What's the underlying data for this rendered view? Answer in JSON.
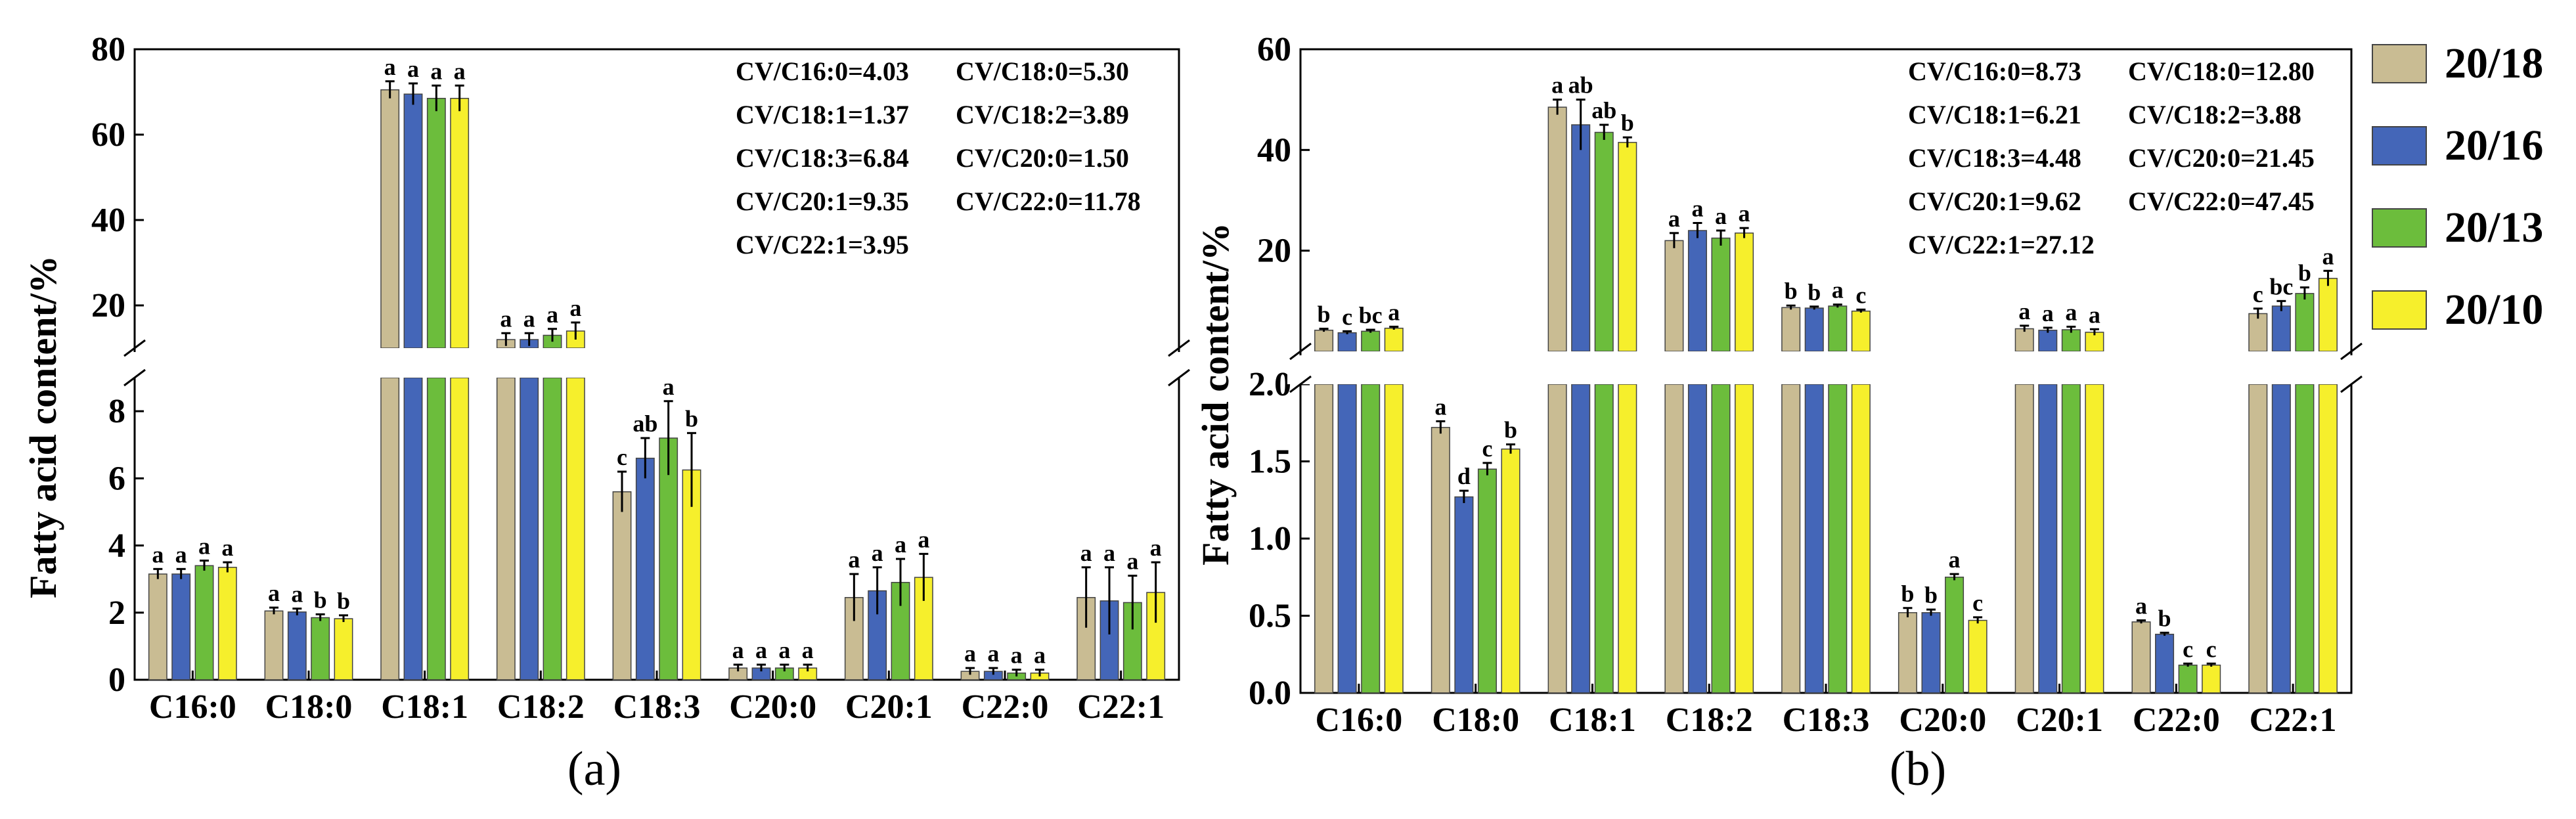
{
  "chart_data": [
    {
      "type": "bar",
      "panel": "(a)",
      "ylabel": "Fatty acid content/%",
      "axis_break": {
        "lower": [
          0,
          9
        ],
        "upper": [
          10,
          80
        ]
      },
      "lower_ticks": [
        "0",
        "2",
        "4",
        "6",
        "8"
      ],
      "upper_ticks": [
        "20",
        "40",
        "60",
        "80"
      ],
      "categories": [
        "C16:0",
        "C18:0",
        "C18:1",
        "C18:2",
        "C18:3",
        "C20:0",
        "C20:1",
        "C22:0",
        "C22:1"
      ],
      "series": [
        {
          "name": "20/18",
          "color": "#c9bc93",
          "values": [
            3.15,
            2.05,
            70.5,
            12.0,
            5.6,
            0.35,
            2.45,
            0.25,
            2.45
          ],
          "errors": [
            0.15,
            0.1,
            2.0,
            1.5,
            0.6,
            0.1,
            0.7,
            0.1,
            0.9
          ],
          "labels": [
            "a",
            "a",
            "a",
            "a",
            "c",
            "a",
            "a",
            "a",
            "a"
          ]
        },
        {
          "name": "20/16",
          "color": "#4466b8",
          "values": [
            3.15,
            2.02,
            69.5,
            12.0,
            6.6,
            0.35,
            2.65,
            0.25,
            2.35
          ],
          "errors": [
            0.15,
            0.1,
            2.5,
            1.5,
            0.6,
            0.1,
            0.7,
            0.1,
            1.0
          ],
          "labels": [
            "a",
            "a",
            "a",
            "a",
            "ab",
            "a",
            "a",
            "a",
            "a"
          ]
        },
        {
          "name": "20/13",
          "color": "#6cbd3c",
          "values": [
            3.4,
            1.85,
            68.5,
            13.0,
            7.2,
            0.35,
            2.9,
            0.2,
            2.3
          ],
          "errors": [
            0.15,
            0.1,
            3.0,
            1.5,
            1.1,
            0.1,
            0.7,
            0.1,
            0.8
          ],
          "labels": [
            "a",
            "b",
            "a",
            "a",
            "a",
            "a",
            "a",
            "a",
            "a"
          ]
        },
        {
          "name": "20/10",
          "color": "#f6ef2c",
          "values": [
            3.35,
            1.82,
            68.5,
            14.0,
            6.25,
            0.35,
            3.05,
            0.2,
            2.6
          ],
          "errors": [
            0.15,
            0.1,
            3.0,
            2.0,
            1.1,
            0.1,
            0.7,
            0.1,
            0.9
          ],
          "labels": [
            "a",
            "b",
            "a",
            "a",
            "b",
            "a",
            "a",
            "a",
            "a"
          ]
        }
      ],
      "cv_annotations": [
        "CV/C16:0=4.03",
        "CV/C18:0=5.30",
        "CV/C18:1=1.37",
        "CV/C18:2=3.89",
        "CV/C18:3=6.84",
        "CV/C20:0=1.50",
        "CV/C20:1=9.35",
        "CV/C22:0=11.78",
        "CV/C22:1=3.95"
      ]
    },
    {
      "type": "bar",
      "panel": "(b)",
      "ylabel": "Fatty acid content/%",
      "axis_break": {
        "lower": [
          0,
          2.0
        ],
        "upper": [
          0,
          60
        ]
      },
      "lower_ticks": [
        "0.0",
        "0.5",
        "1.0",
        "1.5",
        "2.0"
      ],
      "upper_ticks": [
        "20",
        "40",
        "60"
      ],
      "categories": [
        "C16:0",
        "C18:0",
        "C18:1",
        "C18:2",
        "C18:3",
        "C20:0",
        "C20:1",
        "C22:0",
        "C22:1"
      ],
      "series": [
        {
          "name": "20/18",
          "color": "#c9bc93",
          "values": [
            4.2,
            1.72,
            48.5,
            22.0,
            8.7,
            0.52,
            4.5,
            0.46,
            7.5
          ],
          "errors": [
            0.3,
            0.04,
            1.5,
            1.5,
            0.4,
            0.03,
            0.6,
            0.01,
            1.0
          ],
          "labels": [
            "b",
            "a",
            "a",
            "a",
            "b",
            "b",
            "a",
            "a",
            "c"
          ]
        },
        {
          "name": "20/16",
          "color": "#4466b8",
          "values": [
            3.7,
            1.27,
            45.0,
            24.0,
            8.6,
            0.52,
            4.2,
            0.38,
            9.0
          ],
          "errors": [
            0.3,
            0.04,
            5.0,
            1.5,
            0.3,
            0.02,
            0.5,
            0.01,
            1.0
          ],
          "labels": [
            "c",
            "d",
            "ab",
            "a",
            "b",
            "b",
            "a",
            "b",
            "bc"
          ]
        },
        {
          "name": "20/13",
          "color": "#6cbd3c",
          "values": [
            4.0,
            1.45,
            43.5,
            22.5,
            9.0,
            0.75,
            4.3,
            0.18,
            11.5
          ],
          "errors": [
            0.3,
            0.04,
            1.5,
            1.5,
            0.3,
            0.02,
            0.6,
            0.01,
            1.2
          ],
          "labels": [
            "bc",
            "c",
            "ab",
            "a",
            "a",
            "a",
            "a",
            "c",
            "b"
          ]
        },
        {
          "name": "20/10",
          "color": "#f6ef2c",
          "values": [
            4.6,
            1.58,
            41.5,
            23.5,
            8.0,
            0.47,
            3.8,
            0.18,
            14.5
          ],
          "errors": [
            0.3,
            0.03,
            1.0,
            1.0,
            0.3,
            0.02,
            0.6,
            0.01,
            1.5
          ],
          "labels": [
            "a",
            "b",
            "b",
            "a",
            "c",
            "c",
            "a",
            "c",
            "a"
          ]
        }
      ],
      "cv_annotations": [
        "CV/C16:0=8.73",
        "CV/C18:0=12.80",
        "CV/C18:1=6.21",
        "CV/C18:2=3.88",
        "CV/C18:3=4.48",
        "CV/C20:0=21.45",
        "CV/C20:1=9.62",
        "CV/C22:0=47.45",
        "CV/C22:1=27.12"
      ]
    }
  ],
  "legend": {
    "items": [
      {
        "name": "20/18",
        "color": "#c9bc93"
      },
      {
        "name": "20/16",
        "color": "#4466b8"
      },
      {
        "name": "20/13",
        "color": "#6cbd3c"
      },
      {
        "name": "20/10",
        "color": "#f6ef2c"
      }
    ]
  }
}
